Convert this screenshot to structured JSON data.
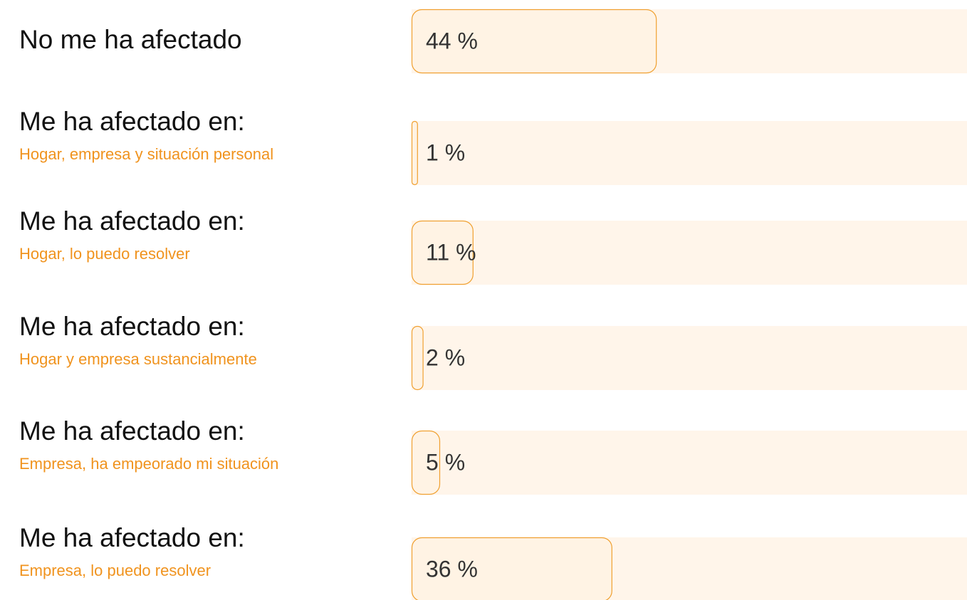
{
  "chart_data": {
    "type": "bar",
    "orientation": "horizontal",
    "categories": [
      "No me ha afectado",
      "Me ha afectado en:",
      "Me ha afectado en:",
      "Me ha afectado en:",
      "Me ha afectado en:",
      "Me ha afectado en:"
    ],
    "subcategories": [
      null,
      "Hogar, empresa y situación personal",
      "Hogar, lo puedo resolver",
      "Hogar y empresa sustancialmente",
      "Empresa, ha empeorado mi situación",
      "Empresa, lo puedo resolver"
    ],
    "values": [
      44,
      1,
      11,
      2,
      5,
      36
    ],
    "value_labels": [
      "44 %",
      "1 %",
      "11 %",
      "2 %",
      "5 %",
      "36 %"
    ],
    "xlim": [
      0,
      100
    ],
    "color": "#fff3e4",
    "stroke": "#f0a030",
    "track_color": "#fff5ea"
  }
}
